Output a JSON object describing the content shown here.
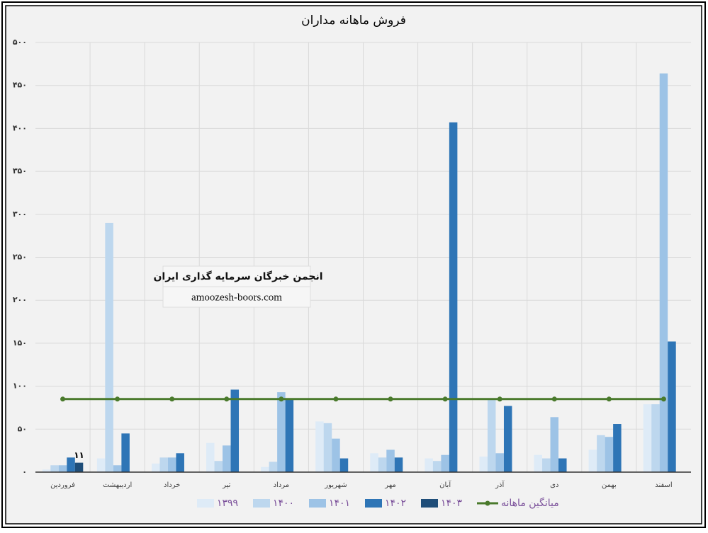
{
  "chart_data": {
    "type": "bar",
    "title": "فروش ماهانه مداران",
    "categories": [
      "فروردین",
      "اردیبهشت",
      "خرداد",
      "تیر",
      "مرداد",
      "شهریور",
      "مهر",
      "آبان",
      "آذر",
      "دی",
      "بهمن",
      "اسفند"
    ],
    "series": [
      {
        "name": "۱۳۹۹",
        "color": "#deebf7",
        "values": [
          3,
          16,
          10,
          34,
          6,
          59,
          22,
          16,
          18,
          20,
          26,
          79
        ]
      },
      {
        "name": "۱۴۰۰",
        "color": "#bdd7ee",
        "values": [
          8,
          290,
          17,
          13,
          12,
          57,
          17,
          13,
          86,
          16,
          43,
          79
        ]
      },
      {
        "name": "۱۴۰۱",
        "color": "#9dc3e6",
        "values": [
          8,
          8,
          17,
          31,
          93,
          39,
          26,
          20,
          22,
          64,
          41,
          464
        ]
      },
      {
        "name": "۱۴۰۲",
        "color": "#2e75b6",
        "values": [
          17,
          45,
          22,
          96,
          84,
          16,
          17,
          407,
          77,
          16,
          56,
          152
        ]
      },
      {
        "name": "۱۴۰۳",
        "color": "#1f4e79",
        "values": [
          11,
          null,
          null,
          null,
          null,
          null,
          null,
          null,
          null,
          null,
          null,
          null
        ],
        "value_labels": [
          "۱۱",
          null,
          null,
          null,
          null,
          null,
          null,
          null,
          null,
          null,
          null,
          null
        ]
      },
      {
        "name": "میانگین ماهانه",
        "color": "#4a7a2c",
        "type": "line",
        "values": [
          85,
          85,
          85,
          85,
          85,
          85,
          85,
          85,
          85,
          85,
          85,
          85
        ]
      }
    ],
    "ylim": [
      0,
      500
    ],
    "yticks": [
      {
        "value": 0,
        "label": "۰"
      },
      {
        "value": 50,
        "label": "۵۰"
      },
      {
        "value": 100,
        "label": "۱۰۰"
      },
      {
        "value": 150,
        "label": "۱۵۰"
      },
      {
        "value": 200,
        "label": "۲۰۰"
      },
      {
        "value": 250,
        "label": "۲۵۰"
      },
      {
        "value": 300,
        "label": "۳۰۰"
      },
      {
        "value": 350,
        "label": "۳۵۰"
      },
      {
        "value": 400,
        "label": "۴۰۰"
      },
      {
        "value": 450,
        "label": "۴۵۰"
      },
      {
        "value": 500,
        "label": "۵۰۰"
      }
    ],
    "grid": true,
    "legend": "bottom",
    "annotations": [
      "انجمن خبرگان سرمایه گذاری ایران",
      "amoozesh-boors.com"
    ]
  }
}
